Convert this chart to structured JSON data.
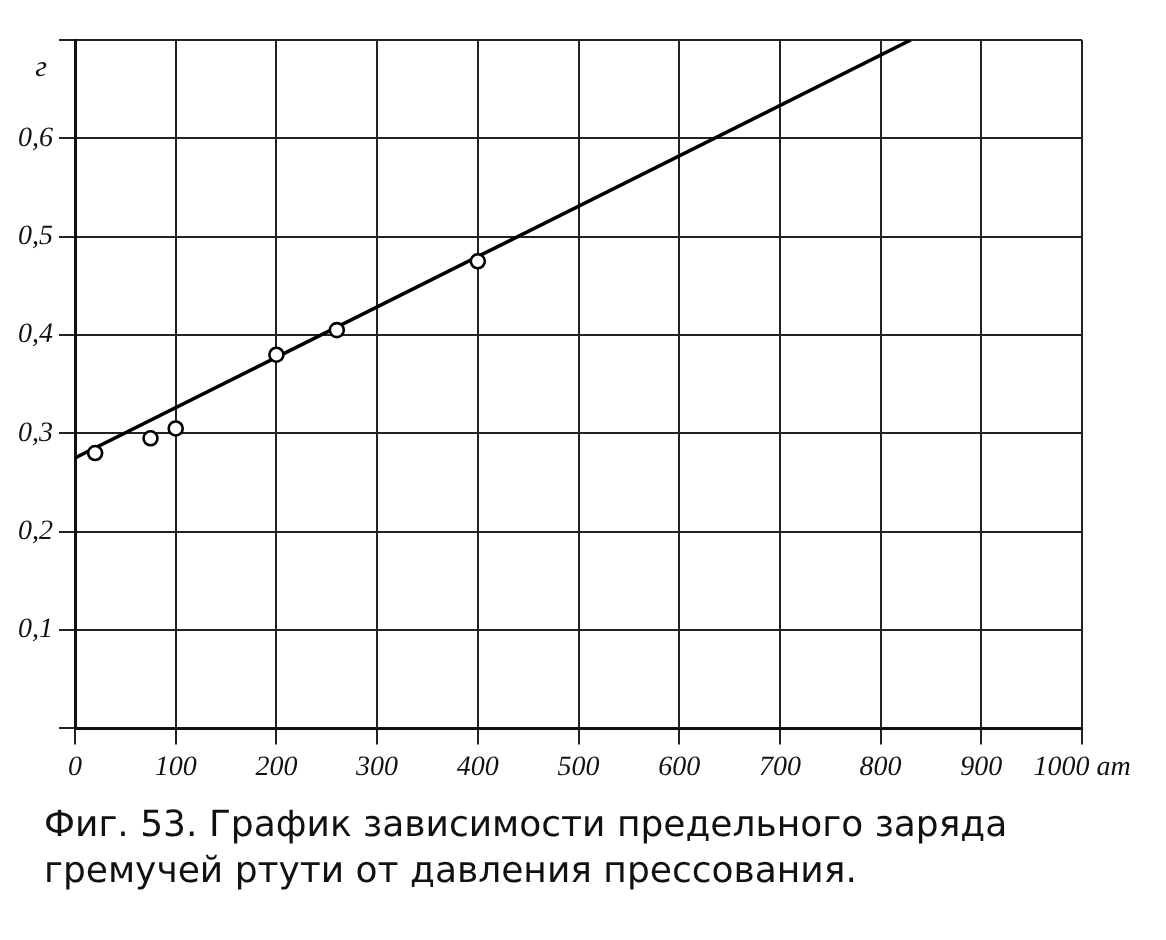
{
  "chart_data": {
    "type": "scatter",
    "ylabel": "г",
    "xlim": [
      0,
      1000
    ],
    "ylim": [
      0,
      0.7
    ],
    "xticks": [
      0,
      100,
      200,
      300,
      400,
      500,
      600,
      700,
      800,
      900,
      {
        "value": 1000,
        "label": "1000 ат"
      }
    ],
    "yticks": [
      {
        "value": 0,
        "label": null
      },
      {
        "value": 0.1,
        "label": "0,1"
      },
      {
        "value": 0.2,
        "label": "0,2"
      },
      {
        "value": 0.3,
        "label": "0,3"
      },
      {
        "value": 0.4,
        "label": "0,4"
      },
      {
        "value": 0.5,
        "label": "0,5"
      },
      {
        "value": 0.6,
        "label": "0,6"
      },
      {
        "value": 0.7,
        "label": null
      }
    ],
    "grid": true,
    "series": [
      {
        "type": "scatter",
        "marker": "circle",
        "color": "#000000",
        "x": [
          20,
          75,
          100,
          200,
          260,
          400
        ],
        "values": [
          0.28,
          0.295,
          0.305,
          0.38,
          0.405,
          0.475
        ]
      },
      {
        "type": "line",
        "marker": "none",
        "color": "#000000",
        "x": [
          0,
          830
        ],
        "values": [
          0.275,
          0.7
        ]
      }
    ],
    "annotations": [
      "Фиг. 53. График зависимости предельного заряда гремучей ртути от давления прессования."
    ]
  }
}
